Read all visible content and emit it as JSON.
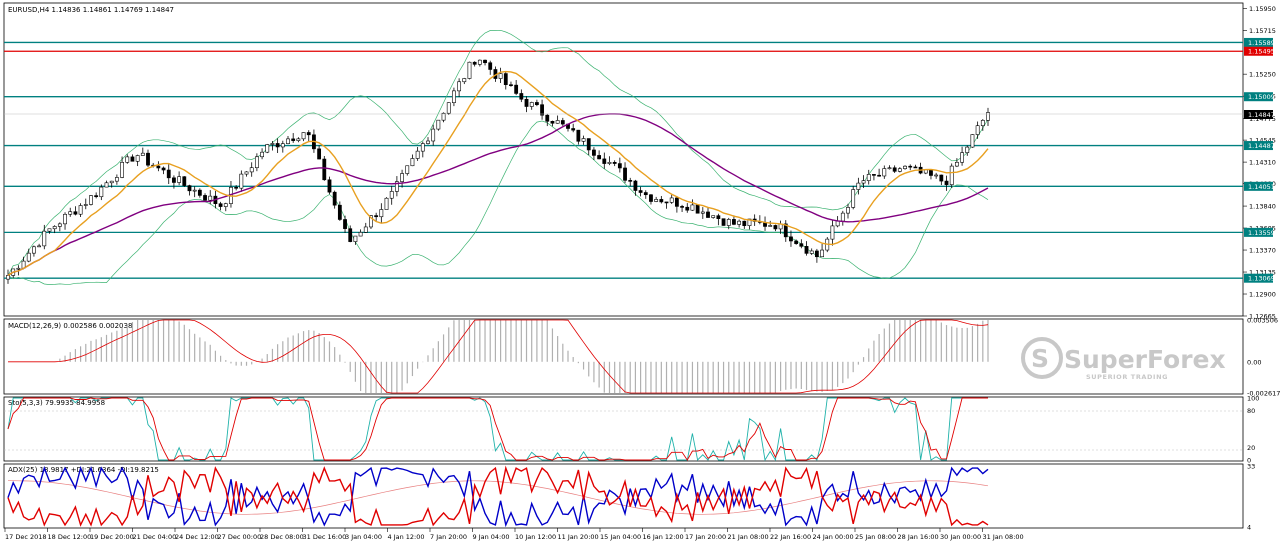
{
  "main": {
    "title": "EURUSD,H4  1.14836 1.14861 1.14769 1.14847",
    "price_ticks": [
      "1.15950",
      "1.15715",
      "1.15250",
      "1.15015",
      "1.14775",
      "1.14545",
      "1.14310",
      "1.14080",
      "1.13840",
      "1.13605",
      "1.13370",
      "1.13135",
      "1.12900",
      "1.12665"
    ],
    "levels": [
      {
        "value": "1.15589",
        "color": "#008080"
      },
      {
        "value": "1.15495",
        "color": "#e00000"
      },
      {
        "value": "1.15009",
        "color": "#008080"
      },
      {
        "value": "1.14487",
        "color": "#008080"
      },
      {
        "value": "1.14051",
        "color": "#008080"
      },
      {
        "value": "1.13559",
        "color": "#008080"
      },
      {
        "value": "1.13069",
        "color": "#008080"
      }
    ],
    "current_price": "1.14847"
  },
  "macd": {
    "title": "MACD(12,26,9) 0.002586 0.002038",
    "ticks": [
      "0.003506",
      "0.00",
      "-0.002617"
    ]
  },
  "stoch": {
    "title": "Sto(5,3,3) 79.9935 84.9958",
    "ticks": [
      "100",
      "80",
      "20",
      "0"
    ]
  },
  "adx": {
    "title": "ADX(25) 18.9817 +DI:21.6364 -DI:19.8215",
    "ticks": [
      "33",
      "4"
    ]
  },
  "time_labels": [
    "17 Dec 2018",
    "18 Dec 12:00",
    "19 Dec 20:00",
    "21 Dec 04:00",
    "24 Dec 12:00",
    "27 Dec 00:00",
    "28 Dec 08:00",
    "31 Dec 16:00",
    "3 Jan 04:00",
    "4 Jan 12:00",
    "7 Jan 20:00",
    "9 Jan 04:00",
    "10 Jan 12:00",
    "11 Jan 20:00",
    "15 Jan 04:00",
    "16 Jan 12:00",
    "17 Jan 20:00",
    "21 Jan 08:00",
    "22 Jan 16:00",
    "24 Jan 00:00",
    "25 Jan 08:00",
    "28 Jan 16:00",
    "30 Jan 00:00",
    "31 Jan 08:00"
  ],
  "watermark": {
    "brand": "SuperForex",
    "tagline": "SUPERIOR TRADING"
  },
  "colors": {
    "bull_candle": "#ffffff",
    "bear_candle": "#000000",
    "ma_fast": "#e8a020",
    "ma_slow": "#800080",
    "bollinger": "#3cb371",
    "macd_signal": "#e00000",
    "macd_hist": "#b0b0b0",
    "stoch_main": "#20b2aa",
    "stoch_signal": "#e00000",
    "adx_main": "#e88080",
    "plus_di": "#0000c8",
    "minus_di": "#e00000"
  },
  "chart_data": [
    {
      "type": "candlestick",
      "title": "EURUSD,H4",
      "ohlc_last": {
        "open": 1.14836,
        "high": 1.14861,
        "low": 1.14769,
        "close": 1.14847
      },
      "ylim": [
        1.12665,
        1.16
      ],
      "xlim": [
        "17 Dec 2018",
        "31 Jan 2019"
      ],
      "close_points": [
        [
          "17 Dec 2018",
          1.131
        ],
        [
          "18 Dec 12:00",
          1.136
        ],
        [
          "19 Dec 20:00",
          1.1395
        ],
        [
          "21 Dec 04:00",
          1.144
        ],
        [
          "24 Dec 12:00",
          1.141
        ],
        [
          "27 Dec 00:00",
          1.1385
        ],
        [
          "28 Dec 08:00",
          1.1445
        ],
        [
          "31 Dec 16:00",
          1.1465
        ],
        [
          "3 Jan 04:00",
          1.1345
        ],
        [
          "4 Jan 12:00",
          1.1395
        ],
        [
          "7 Jan 20:00",
          1.147
        ],
        [
          "9 Jan 04:00",
          1.1545
        ],
        [
          "10 Jan 12:00",
          1.15
        ],
        [
          "11 Jan 20:00",
          1.147
        ],
        [
          "15 Jan 04:00",
          1.1435
        ],
        [
          "16 Jan 12:00",
          1.1395
        ],
        [
          "17 Jan 20:00",
          1.1385
        ],
        [
          "21 Jan 08:00",
          1.1365
        ],
        [
          "22 Jan 16:00",
          1.1365
        ],
        [
          "24 Jan 00:00",
          1.133
        ],
        [
          "25 Jan 08:00",
          1.141
        ],
        [
          "28 Jan 16:00",
          1.1425
        ],
        [
          "30 Jan 00:00",
          1.141
        ],
        [
          "31 Jan 08:00",
          1.14847
        ]
      ],
      "horizontal_levels": [
        1.15589,
        1.15495,
        1.15009,
        1.14487,
        1.14051,
        1.13559,
        1.13069
      ],
      "series": [
        {
          "name": "EURUSD,H4"
        }
      ]
    },
    {
      "type": "bar",
      "title": "MACD(12,26,9)",
      "ylim": [
        -0.002617,
        0.003506
      ],
      "last": {
        "main": 0.002586,
        "signal": 0.002038
      }
    },
    {
      "type": "line",
      "title": "Sto(5,3,3)",
      "ylim": [
        0,
        100
      ],
      "levels": [
        20,
        80
      ],
      "last": {
        "main": 79.9935,
        "signal": 84.9958
      }
    },
    {
      "type": "line",
      "title": "ADX(25)",
      "ylim": [
        4,
        33
      ],
      "last": {
        "adx": 18.9817,
        "plus_di": 21.6364,
        "minus_di": 19.8215
      }
    }
  ]
}
